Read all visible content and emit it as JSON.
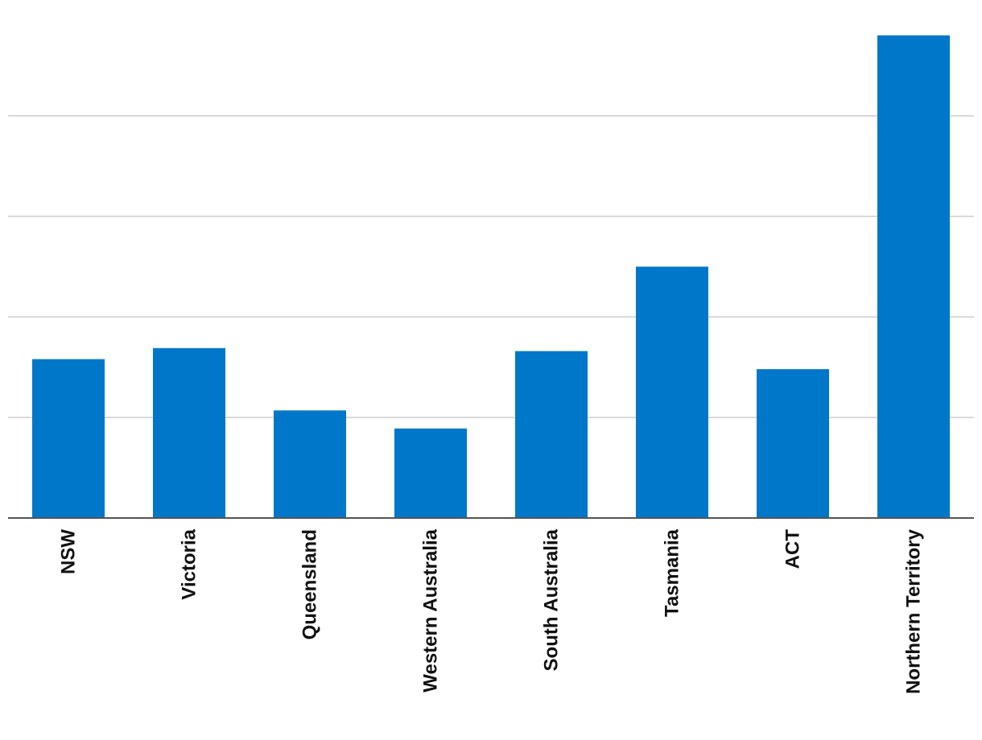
{
  "chart_data": {
    "type": "bar",
    "title": "",
    "xlabel": "",
    "ylabel": "",
    "categories": [
      "NSW",
      "Victoria",
      "Queensland",
      "Western Australia",
      "South Australia",
      "Tasmania",
      "ACT",
      "Northern Territory"
    ],
    "values": [
      1.58,
      1.69,
      1.07,
      0.89,
      1.66,
      2.5,
      1.48,
      4.8
    ],
    "ylim": [
      0,
      5
    ],
    "gridlines": [
      1,
      2,
      3,
      4
    ],
    "grid": true,
    "y_tick_labels_shown": false,
    "bar_color": "#0077c8",
    "grid_color": "#d9d9d9",
    "axis_color": "#555555"
  }
}
